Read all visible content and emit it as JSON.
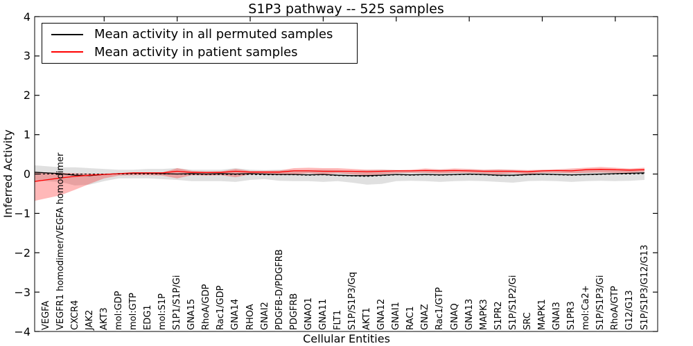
{
  "figure": {
    "title": "S1P3 pathway -- 525 samples"
  },
  "axes": {
    "xlabel": "Cellular Entities",
    "ylabel": "Inferred Activity",
    "ytick_labels": [
      "4",
      "3",
      "2",
      "1",
      "0",
      "−1",
      "−2",
      "−3",
      "−4"
    ],
    "ytick_values": [
      4,
      3,
      2,
      1,
      0,
      -1,
      -2,
      -3,
      -4
    ],
    "ylim": [
      -4,
      4
    ]
  },
  "legend": {
    "position": "upper left",
    "items": [
      {
        "label": "Mean activity in all permuted samples",
        "color": "#000000"
      },
      {
        "label": "Mean activity in patient samples",
        "color": "#ff0000"
      }
    ]
  },
  "chart_data": {
    "type": "line",
    "title": "S1P3 pathway -- 525 samples",
    "xlabel": "Cellular Entities",
    "ylabel": "Inferred Activity",
    "ylim": [
      -4,
      4
    ],
    "grid": false,
    "legend_position": "upper left",
    "categories": [
      "VEGFA",
      "VEGFR1 homodimer/VEGFA homodimer",
      "CXCR4",
      "JAK2",
      "AKT3",
      "mol:GDP",
      "mol:GTP",
      "EDG1",
      "mol:S1P",
      "S1P1/S1P/Gi",
      "GNA15",
      "RhoA/GDP",
      "Rac1/GDP",
      "GNA14",
      "RHOA",
      "GNAI2",
      "PDGFB-D/PDGFRB",
      "PDGFRB",
      "GNAO1",
      "GNA11",
      "FLT1",
      "S1P/S1P3/Gq",
      "AKT1",
      "GNA12",
      "GNAI1",
      "RAC1",
      "GNAZ",
      "Rac1/GTP",
      "GNAQ",
      "GNA13",
      "MAPK3",
      "S1PR2",
      "S1P/S1P2/Gi",
      "SRC",
      "MAPK1",
      "GNAI3",
      "S1PR3",
      "mol:Ca2+",
      "S1P/S1P3/Gi",
      "RhoA/GTP",
      "G12/G13",
      "S1P/S1P3/G12/G13"
    ],
    "series": [
      {
        "name": "Mean activity in all permuted samples",
        "color": "#000000",
        "band_color": "rgba(0,0,0,0.12)",
        "values": [
          0.03,
          0.01,
          -0.03,
          -0.04,
          -0.01,
          0.01,
          0.02,
          0.02,
          0.01,
          0.0,
          0.01,
          0.0,
          0.01,
          0.0,
          0.01,
          0.0,
          -0.01,
          -0.01,
          -0.02,
          -0.01,
          -0.03,
          -0.04,
          -0.04,
          -0.03,
          -0.01,
          -0.02,
          -0.01,
          -0.02,
          -0.01,
          0.0,
          -0.01,
          -0.03,
          -0.03,
          -0.01,
          0.0,
          -0.01,
          -0.02,
          -0.01,
          0.0,
          0.01,
          0.02,
          0.03
        ],
        "band_upper": [
          0.2,
          0.17,
          0.17,
          0.15,
          0.13,
          0.11,
          0.11,
          0.13,
          0.13,
          0.15,
          0.11,
          0.11,
          0.11,
          0.15,
          0.11,
          0.1,
          0.11,
          0.1,
          0.1,
          0.11,
          0.1,
          0.08,
          0.1,
          0.11,
          0.1,
          0.08,
          0.1,
          0.11,
          0.1,
          0.11,
          0.1,
          0.11,
          0.1,
          0.08,
          0.1,
          0.1,
          0.11,
          0.1,
          0.11,
          0.1,
          0.11,
          0.1
        ],
        "band_lower": [
          -0.18,
          -0.2,
          -0.29,
          -0.27,
          -0.18,
          -0.11,
          -0.11,
          -0.11,
          -0.13,
          -0.15,
          -0.18,
          -0.18,
          -0.18,
          -0.2,
          -0.15,
          -0.13,
          -0.17,
          -0.18,
          -0.18,
          -0.2,
          -0.18,
          -0.22,
          -0.27,
          -0.25,
          -0.18,
          -0.17,
          -0.18,
          -0.2,
          -0.18,
          -0.17,
          -0.18,
          -0.2,
          -0.22,
          -0.18,
          -0.17,
          -0.18,
          -0.2,
          -0.18,
          -0.17,
          -0.18,
          -0.17,
          -0.15
        ],
        "median_dashed": [
          0.0,
          0.0,
          0.0,
          0.0,
          0.0,
          0.0,
          0.0,
          0.0,
          0.0,
          0.0,
          -0.01,
          -0.01,
          -0.01,
          -0.01,
          -0.01,
          -0.02,
          -0.02,
          -0.02,
          -0.03,
          -0.02,
          -0.04,
          -0.05,
          -0.06,
          -0.04,
          -0.02,
          -0.03,
          -0.02,
          -0.03,
          -0.02,
          -0.01,
          -0.02,
          -0.04,
          -0.04,
          -0.02,
          -0.01,
          -0.02,
          -0.03,
          -0.02,
          -0.01,
          0.0,
          0.0,
          0.01
        ]
      },
      {
        "name": "Mean activity in patient samples",
        "color": "#ff0000",
        "band_color": "rgba(255,0,0,0.28)",
        "values": [
          -0.15,
          -0.1,
          -0.06,
          -0.03,
          -0.01,
          0.01,
          0.03,
          0.03,
          0.03,
          0.07,
          0.04,
          0.04,
          0.04,
          0.07,
          0.05,
          0.05,
          0.05,
          0.08,
          0.08,
          0.07,
          0.07,
          0.07,
          0.06,
          0.07,
          0.08,
          0.08,
          0.09,
          0.08,
          0.09,
          0.08,
          0.07,
          0.07,
          0.07,
          0.06,
          0.08,
          0.09,
          0.08,
          0.11,
          0.12,
          0.11,
          0.1,
          0.11
        ],
        "band_upper": [
          0.04,
          0.03,
          0.02,
          0.01,
          0.01,
          0.02,
          0.03,
          0.04,
          0.04,
          0.15,
          0.08,
          0.06,
          0.07,
          0.13,
          0.08,
          0.08,
          0.09,
          0.15,
          0.16,
          0.15,
          0.15,
          0.13,
          0.11,
          0.11,
          0.1,
          0.11,
          0.14,
          0.12,
          0.14,
          0.13,
          0.11,
          0.12,
          0.11,
          0.1,
          0.11,
          0.12,
          0.14,
          0.16,
          0.18,
          0.16,
          0.14,
          0.16
        ],
        "band_lower": [
          -0.62,
          -0.54,
          -0.4,
          -0.25,
          -0.11,
          -0.04,
          -0.03,
          -0.03,
          -0.04,
          -0.11,
          -0.03,
          -0.04,
          -0.03,
          -0.08,
          -0.01,
          -0.01,
          -0.01,
          -0.01,
          0.02,
          -0.01,
          0.02,
          -0.01,
          -0.03,
          -0.01,
          0.02,
          0.03,
          0.03,
          0.01,
          0.03,
          0.03,
          0.01,
          -0.01,
          0.02,
          -0.01,
          0.03,
          0.03,
          0.02,
          0.03,
          0.04,
          0.03,
          0.03,
          0.06
        ]
      }
    ]
  }
}
